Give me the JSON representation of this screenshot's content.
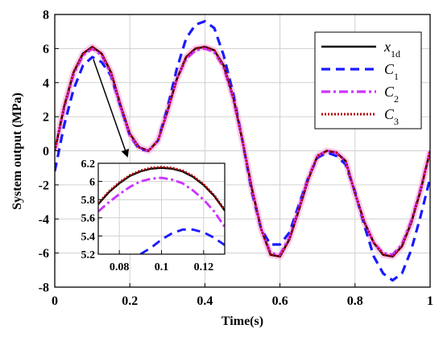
{
  "chart_data": [
    {
      "id": "main",
      "type": "line",
      "xlabel": "Time(s)",
      "ylabel": "System output (MPa)",
      "xlim": [
        0,
        1
      ],
      "ylim": [
        -8,
        8
      ],
      "xticks": [
        0,
        0.2,
        0.4,
        0.6,
        0.8,
        1
      ],
      "xtick_labels": [
        "0",
        "0.2",
        "0.4",
        "0.6",
        "0.8",
        "1"
      ],
      "yticks": [
        -8,
        -6,
        -4,
        -2,
        0,
        2,
        4,
        6,
        8
      ],
      "ytick_labels": [
        "-8",
        "-6",
        "-4",
        "-2",
        "0",
        "2",
        "4",
        "6",
        "8"
      ],
      "grid": true,
      "legend_position": "top-right",
      "series": [
        {
          "key": "x1d",
          "name": "x",
          "name_subscript": "1d",
          "color": "#000000",
          "style": "solid",
          "x": [
            0,
            0.025,
            0.05,
            0.075,
            0.1,
            0.125,
            0.15,
            0.175,
            0.2,
            0.225,
            0.25,
            0.275,
            0.3,
            0.325,
            0.35,
            0.375,
            0.4,
            0.425,
            0.45,
            0.475,
            0.5,
            0.525,
            0.55,
            0.575,
            0.6,
            0.625,
            0.65,
            0.675,
            0.7,
            0.725,
            0.75,
            0.775,
            0.8,
            0.825,
            0.85,
            0.875,
            0.9,
            0.925,
            0.95,
            0.975,
            1
          ],
          "y": [
            0,
            2.6,
            4.6,
            5.7,
            6.1,
            5.7,
            4.6,
            2.7,
            1.0,
            0.2,
            0.0,
            0.6,
            2.3,
            4.2,
            5.5,
            6.0,
            6.1,
            5.9,
            5.0,
            3.2,
            0.6,
            -2.2,
            -4.6,
            -6.1,
            -6.2,
            -5.2,
            -3.5,
            -1.7,
            -0.3,
            0.0,
            -0.1,
            -0.6,
            -2.5,
            -4.2,
            -5.4,
            -6.1,
            -6.2,
            -5.6,
            -4.2,
            -2.3,
            0.0
          ]
        },
        {
          "key": "c1",
          "name": "C",
          "name_subscript": "1",
          "color": "#1a1aff",
          "style": "dashed",
          "x": [
            0,
            0.025,
            0.05,
            0.075,
            0.1,
            0.125,
            0.15,
            0.175,
            0.2,
            0.225,
            0.25,
            0.275,
            0.3,
            0.325,
            0.35,
            0.375,
            0.4,
            0.425,
            0.45,
            0.475,
            0.5,
            0.525,
            0.55,
            0.575,
            0.6,
            0.625,
            0.65,
            0.675,
            0.7,
            0.725,
            0.75,
            0.775,
            0.8,
            0.825,
            0.85,
            0.875,
            0.9,
            0.925,
            0.95,
            0.975,
            1
          ],
          "y": [
            -1.2,
            1.5,
            3.6,
            5.0,
            5.5,
            5.2,
            4.4,
            2.6,
            0.9,
            0.1,
            0.0,
            0.6,
            2.5,
            4.8,
            6.6,
            7.4,
            7.6,
            7.2,
            5.6,
            3.4,
            0.6,
            -2.4,
            -4.6,
            -5.5,
            -5.5,
            -4.8,
            -3.2,
            -1.6,
            -0.4,
            -0.1,
            -0.3,
            -0.8,
            -2.4,
            -4.4,
            -6.2,
            -7.2,
            -7.6,
            -7.2,
            -5.8,
            -3.8,
            -1.6
          ]
        },
        {
          "key": "c2",
          "name": "C",
          "name_subscript": "2",
          "color": "#cc33ff",
          "style": "dashdot",
          "x": [
            0,
            0.025,
            0.05,
            0.075,
            0.1,
            0.125,
            0.15,
            0.175,
            0.2,
            0.225,
            0.25,
            0.275,
            0.3,
            0.325,
            0.35,
            0.375,
            0.4,
            0.425,
            0.45,
            0.475,
            0.5,
            0.525,
            0.55,
            0.575,
            0.6,
            0.625,
            0.65,
            0.675,
            0.7,
            0.725,
            0.75,
            0.775,
            0.8,
            0.825,
            0.85,
            0.875,
            0.9,
            0.925,
            0.95,
            0.975,
            1
          ],
          "y": [
            0,
            2.5,
            4.5,
            5.6,
            6.0,
            5.6,
            4.5,
            2.6,
            0.9,
            0.2,
            0.0,
            0.6,
            2.3,
            4.2,
            5.4,
            5.9,
            6.0,
            5.8,
            4.9,
            3.1,
            0.6,
            -2.2,
            -4.6,
            -6.0,
            -6.1,
            -5.1,
            -3.4,
            -1.6,
            -0.3,
            0.0,
            -0.1,
            -0.6,
            -2.5,
            -4.2,
            -5.4,
            -6.0,
            -6.1,
            -5.5,
            -4.1,
            -2.2,
            0.0
          ]
        },
        {
          "key": "c3",
          "name": "C",
          "name_subscript": "3",
          "color": "#b30000",
          "style": "dotted",
          "x": [
            0,
            0.025,
            0.05,
            0.075,
            0.1,
            0.125,
            0.15,
            0.175,
            0.2,
            0.225,
            0.25,
            0.275,
            0.3,
            0.325,
            0.35,
            0.375,
            0.4,
            0.425,
            0.45,
            0.475,
            0.5,
            0.525,
            0.55,
            0.575,
            0.6,
            0.625,
            0.65,
            0.675,
            0.7,
            0.725,
            0.75,
            0.775,
            0.8,
            0.825,
            0.85,
            0.875,
            0.9,
            0.925,
            0.95,
            0.975,
            1
          ],
          "y": [
            0,
            2.6,
            4.6,
            5.7,
            6.1,
            5.7,
            4.6,
            2.7,
            1.0,
            0.2,
            0.0,
            0.6,
            2.3,
            4.2,
            5.5,
            6.0,
            6.1,
            5.9,
            5.0,
            3.2,
            0.6,
            -2.2,
            -4.6,
            -6.1,
            -6.2,
            -5.2,
            -3.5,
            -1.7,
            -0.3,
            0.0,
            -0.1,
            -0.6,
            -2.5,
            -4.2,
            -5.4,
            -6.1,
            -6.2,
            -5.6,
            -4.2,
            -2.3,
            0.0
          ]
        }
      ]
    },
    {
      "id": "inset",
      "type": "line",
      "xlim": [
        0.07,
        0.13
      ],
      "ylim": [
        5.2,
        6.2
      ],
      "xticks": [
        0.08,
        0.1,
        0.12
      ],
      "xtick_labels": [
        "0.08",
        "0.1",
        "0.12"
      ],
      "yticks": [
        5.2,
        5.4,
        5.6,
        5.8,
        6,
        6.2
      ],
      "ytick_labels": [
        "5.2",
        "5.4",
        "5.6",
        "5.8",
        "6",
        "6.2"
      ],
      "grid": true,
      "zoom_source": {
        "x": 0.1,
        "y": 6.0
      },
      "series": [
        {
          "key": "x1d",
          "color": "#000000",
          "style": "solid",
          "x": [
            0.07,
            0.075,
            0.08,
            0.085,
            0.09,
            0.095,
            0.1,
            0.105,
            0.11,
            0.115,
            0.12,
            0.125,
            0.13
          ],
          "y": [
            5.75,
            5.88,
            5.98,
            6.06,
            6.11,
            6.14,
            6.15,
            6.14,
            6.11,
            6.05,
            5.96,
            5.84,
            5.68
          ]
        },
        {
          "key": "c1",
          "color": "#1a1aff",
          "style": "dashed",
          "x": [
            0.09,
            0.095,
            0.1,
            0.105,
            0.11,
            0.115,
            0.12,
            0.125,
            0.13
          ],
          "y": [
            5.2,
            5.27,
            5.36,
            5.43,
            5.47,
            5.47,
            5.44,
            5.38,
            5.3
          ]
        },
        {
          "key": "c2",
          "color": "#cc33ff",
          "style": "dashdot",
          "x": [
            0.07,
            0.075,
            0.08,
            0.085,
            0.09,
            0.095,
            0.1,
            0.105,
            0.11,
            0.115,
            0.12,
            0.125,
            0.13
          ],
          "y": [
            5.67,
            5.77,
            5.86,
            5.94,
            6.0,
            6.03,
            6.04,
            6.02,
            5.98,
            5.9,
            5.8,
            5.67,
            5.5
          ]
        },
        {
          "key": "c3",
          "color": "#b30000",
          "style": "dotted",
          "x": [
            0.07,
            0.075,
            0.08,
            0.085,
            0.09,
            0.095,
            0.1,
            0.105,
            0.11,
            0.115,
            0.12,
            0.125,
            0.13
          ],
          "y": [
            5.76,
            5.89,
            5.99,
            6.07,
            6.12,
            6.15,
            6.16,
            6.15,
            6.12,
            6.06,
            5.97,
            5.85,
            5.69
          ]
        }
      ]
    }
  ]
}
